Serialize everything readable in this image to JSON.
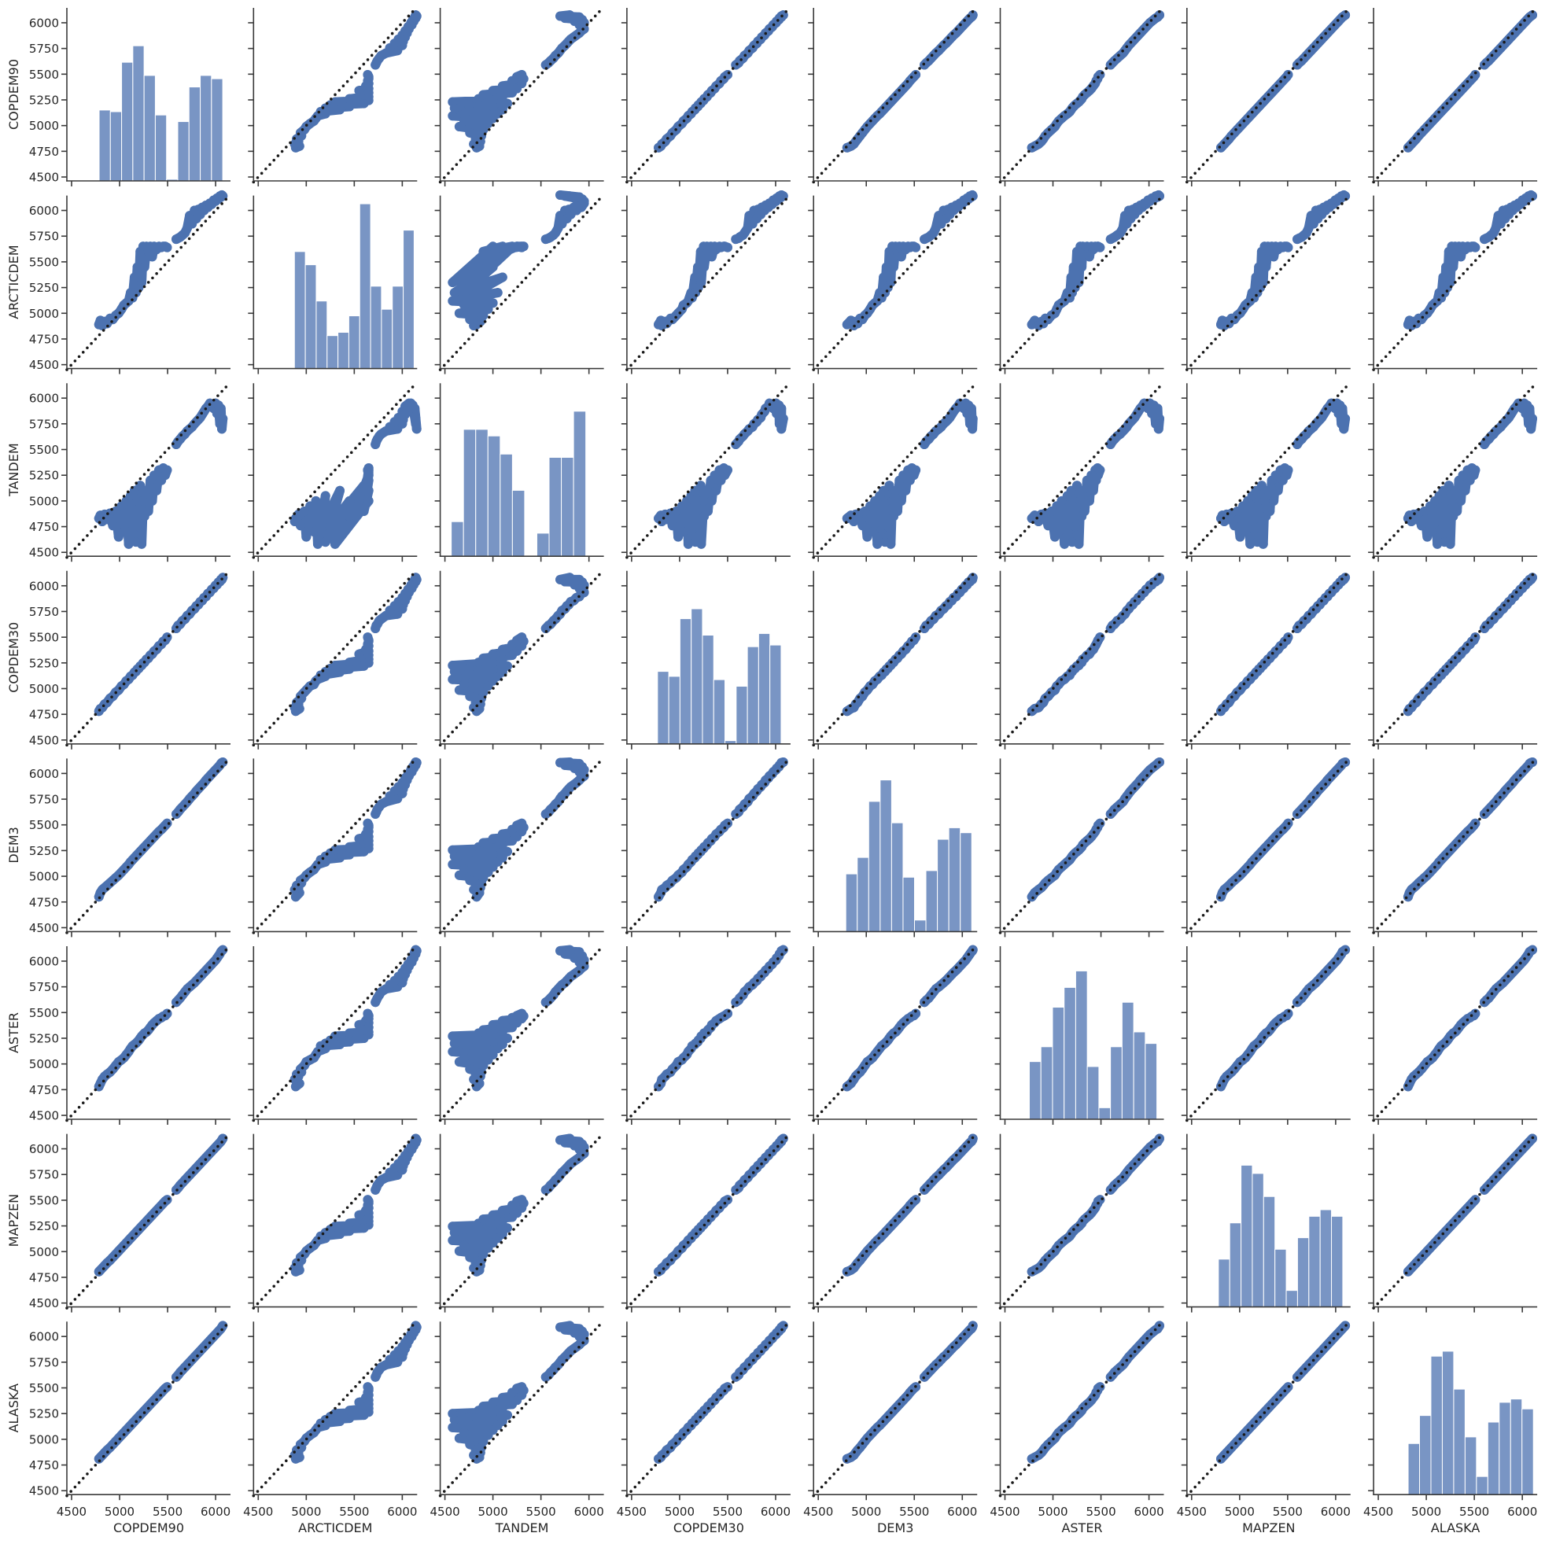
{
  "chart_data": {
    "type": "pairplot",
    "subtype": "scatter matrix with histogram diagonal and dotted 1:1 line",
    "variables": [
      "COPDEM90",
      "ARCTICDEM",
      "TANDEM",
      "COPDEM30",
      "DEM3",
      "ASTER",
      "MAPZEN",
      "ALASKA"
    ],
    "xlim": [
      4451,
      6155
    ],
    "ylim": [
      4462,
      6145
    ],
    "ticks": [
      4500,
      5000,
      5500,
      6000
    ],
    "ytick_labels": [
      "4500",
      "4750",
      "5000",
      "5250",
      "5500",
      "5750",
      "6000"
    ],
    "yticks": [
      4500,
      4750,
      5000,
      5250,
      5500,
      5750,
      6000
    ],
    "xtick_labels": [
      "4500",
      "5000",
      "5500",
      "6000"
    ],
    "grid": false,
    "identity_line": {
      "style": "dotted",
      "color": "#1a1a1a"
    },
    "colors": {
      "scatter": "#4c72b0",
      "hist": "#4c72b0",
      "hist_alpha": 0.75
    },
    "histograms": {
      "COPDEM90": {
        "range": [
          4787,
          6074
        ],
        "relative_counts": [
          0.43,
          0.42,
          0.72,
          0.82,
          0.64,
          0.4,
          0.01,
          0.36,
          0.57,
          0.64,
          0.62
        ]
      },
      "ARCTICDEM": {
        "range": [
          4877,
          6123
        ],
        "relative_counts": [
          0.71,
          0.63,
          0.41,
          0.2,
          0.22,
          0.32,
          1.0,
          0.5,
          0.36,
          0.5,
          0.84
        ]
      },
      "TANDEM": {
        "range": [
          4566,
          5967
        ],
        "relative_counts": [
          0.21,
          0.77,
          0.77,
          0.73,
          0.62,
          0.4,
          0.004,
          0.14,
          0.6,
          0.6,
          0.88
        ]
      },
      "COPDEM30": {
        "range": [
          4770,
          6057
        ],
        "relative_counts": [
          0.44,
          0.41,
          0.76,
          0.82,
          0.66,
          0.39,
          0.02,
          0.35,
          0.59,
          0.67,
          0.6
        ]
      },
      "DEM3": {
        "range": [
          4787,
          6098
        ],
        "relative_counts": [
          0.35,
          0.45,
          0.79,
          0.92,
          0.66,
          0.33,
          0.07,
          0.37,
          0.56,
          0.63,
          0.6
        ]
      },
      "ASTER": {
        "range": [
          4754,
          6082
        ],
        "relative_counts": [
          0.35,
          0.44,
          0.68,
          0.8,
          0.9,
          0.32,
          0.07,
          0.44,
          0.71,
          0.53,
          0.46
        ]
      },
      "MAPZEN": {
        "range": [
          4779,
          6074
        ],
        "relative_counts": [
          0.29,
          0.51,
          0.86,
          0.81,
          0.67,
          0.35,
          0.1,
          0.42,
          0.55,
          0.59,
          0.55
        ]
      },
      "ALASKA": {
        "range": [
          4811,
          6115
        ],
        "relative_counts": [
          0.31,
          0.48,
          0.84,
          0.87,
          0.64,
          0.35,
          0.11,
          0.44,
          0.56,
          0.58,
          0.52
        ]
      }
    },
    "samples": {
      "COPDEM90": [
        [
          4785,
          4800,
          4820,
          4845,
          4870,
          4900,
          4930,
          4960,
          4990,
          5020,
          5045,
          5070,
          5095,
          5115,
          5135,
          5155,
          5170,
          5185,
          5200,
          5215,
          5230,
          5245,
          5260,
          5280,
          5300,
          5320,
          5340,
          5360,
          5385,
          5410,
          5435,
          5455,
          5475,
          5495
        ],
        [
          5590,
          5610,
          5630,
          5655,
          5680,
          5705,
          5730,
          5755,
          5780,
          5800,
          5820,
          5840,
          5860,
          5880,
          5900,
          5920,
          5940,
          5960,
          5980,
          6000,
          6015,
          6030,
          6045,
          6055,
          6065,
          6075
        ]
      ],
      "ARCTICDEM": [
        [
          4890,
          4930,
          4880,
          4920,
          4900,
          4950,
          4940,
          4980,
          5000,
          5040,
          5080,
          5100,
          5120,
          5200,
          5150,
          5350,
          5200,
          5450,
          5250,
          5600,
          5300,
          5650,
          5450,
          5650,
          5600,
          5650,
          5550,
          5650,
          5620,
          5650,
          5640,
          5650,
          5650,
          5640
        ],
        [
          5720,
          5730,
          5740,
          5760,
          5780,
          5830,
          5950,
          5870,
          6000,
          5920,
          6010,
          5960,
          6030,
          6000,
          6050,
          6030,
          6070,
          6060,
          6100,
          6090,
          6120,
          6110,
          6140,
          6130,
          6150,
          6140
        ]
      ],
      "TANDEM": [
        [
          4830,
          4860,
          4800,
          4870,
          4820,
          4880,
          4760,
          4900,
          4650,
          4950,
          4700,
          5000,
          4580,
          5050,
          4720,
          5100,
          4600,
          5000,
          4750,
          5150,
          4580,
          5000,
          4850,
          5100,
          4900,
          5200,
          5000,
          5250,
          5100,
          5300,
          5200,
          5320,
          5250,
          5300
        ],
        [
          5550,
          5580,
          5600,
          5630,
          5650,
          5680,
          5700,
          5720,
          5750,
          5770,
          5790,
          5810,
          5840,
          5870,
          5900,
          5920,
          5950,
          5940,
          5900,
          5950,
          5850,
          5930,
          5750,
          5900,
          5700,
          5800
        ]
      ],
      "COPDEM30": [
        [
          4780,
          4805,
          4815,
          4850,
          4865,
          4905,
          4925,
          4965,
          4985,
          5025,
          5040,
          5075,
          5090,
          5120,
          5130,
          5160,
          5165,
          5190,
          5195,
          5220,
          5225,
          5250,
          5255,
          5285,
          5295,
          5325,
          5335,
          5365,
          5380,
          5415,
          5430,
          5460,
          5470,
          5500
        ],
        [
          5585,
          5615,
          5625,
          5660,
          5675,
          5710,
          5725,
          5760,
          5775,
          5805,
          5815,
          5845,
          5855,
          5885,
          5895,
          5925,
          5935,
          5965,
          5975,
          6005,
          6010,
          6035,
          6040,
          6060,
          6060,
          6080
        ]
      ],
      "DEM3": [
        [
          4800,
          4840,
          4870,
          4890,
          4910,
          4935,
          4960,
          4985,
          5010,
          5040,
          5065,
          5090,
          5115,
          5140,
          5160,
          5180,
          5195,
          5210,
          5225,
          5240,
          5255,
          5270,
          5285,
          5305,
          5325,
          5345,
          5365,
          5385,
          5410,
          5435,
          5455,
          5475,
          5495,
          5515
        ],
        [
          5605,
          5625,
          5650,
          5675,
          5700,
          5725,
          5755,
          5780,
          5805,
          5830,
          5850,
          5870,
          5890,
          5910,
          5935,
          5955,
          5975,
          5995,
          6015,
          6035,
          6050,
          6065,
          6080,
          6095,
          6105,
          6110
        ]
      ],
      "ASTER": [
        [
          4780,
          4810,
          4850,
          4880,
          4900,
          4920,
          4950,
          4985,
          5020,
          5040,
          5060,
          5090,
          5120,
          5150,
          5175,
          5190,
          5200,
          5215,
          5230,
          5250,
          5270,
          5285,
          5300,
          5310,
          5330,
          5355,
          5380,
          5400,
          5420,
          5440,
          5450,
          5465,
          5470,
          5490
        ],
        [
          5600,
          5620,
          5640,
          5670,
          5700,
          5730,
          5750,
          5770,
          5790,
          5810,
          5830,
          5850,
          5870,
          5890,
          5910,
          5930,
          5950,
          5970,
          5990,
          6010,
          6030,
          6050,
          6070,
          6090,
          6100,
          6110
        ]
      ],
      "MAPZEN": [
        [
          4805,
          4820,
          4840,
          4865,
          4890,
          4915,
          4945,
          4975,
          5005,
          5035,
          5060,
          5085,
          5110,
          5130,
          5150,
          5170,
          5185,
          5200,
          5215,
          5230,
          5245,
          5260,
          5275,
          5295,
          5315,
          5335,
          5355,
          5375,
          5400,
          5425,
          5450,
          5470,
          5490,
          5505
        ],
        [
          5600,
          5620,
          5645,
          5670,
          5695,
          5720,
          5745,
          5770,
          5795,
          5815,
          5835,
          5855,
          5875,
          5895,
          5915,
          5935,
          5955,
          5975,
          5995,
          6015,
          6030,
          6045,
          6060,
          6070,
          6085,
          6100
        ]
      ],
      "ALASKA": [
        [
          4810,
          4825,
          4845,
          4870,
          4895,
          4920,
          4950,
          4980,
          5010,
          5040,
          5065,
          5090,
          5115,
          5135,
          5155,
          5175,
          5190,
          5205,
          5220,
          5235,
          5250,
          5265,
          5280,
          5300,
          5320,
          5340,
          5360,
          5380,
          5405,
          5430,
          5455,
          5475,
          5495,
          5510
        ],
        [
          5605,
          5625,
          5650,
          5675,
          5700,
          5725,
          5750,
          5775,
          5800,
          5820,
          5840,
          5860,
          5880,
          5900,
          5920,
          5940,
          5960,
          5980,
          6000,
          6020,
          6035,
          6050,
          6065,
          6075,
          6090,
          6105
        ]
      ]
    }
  }
}
